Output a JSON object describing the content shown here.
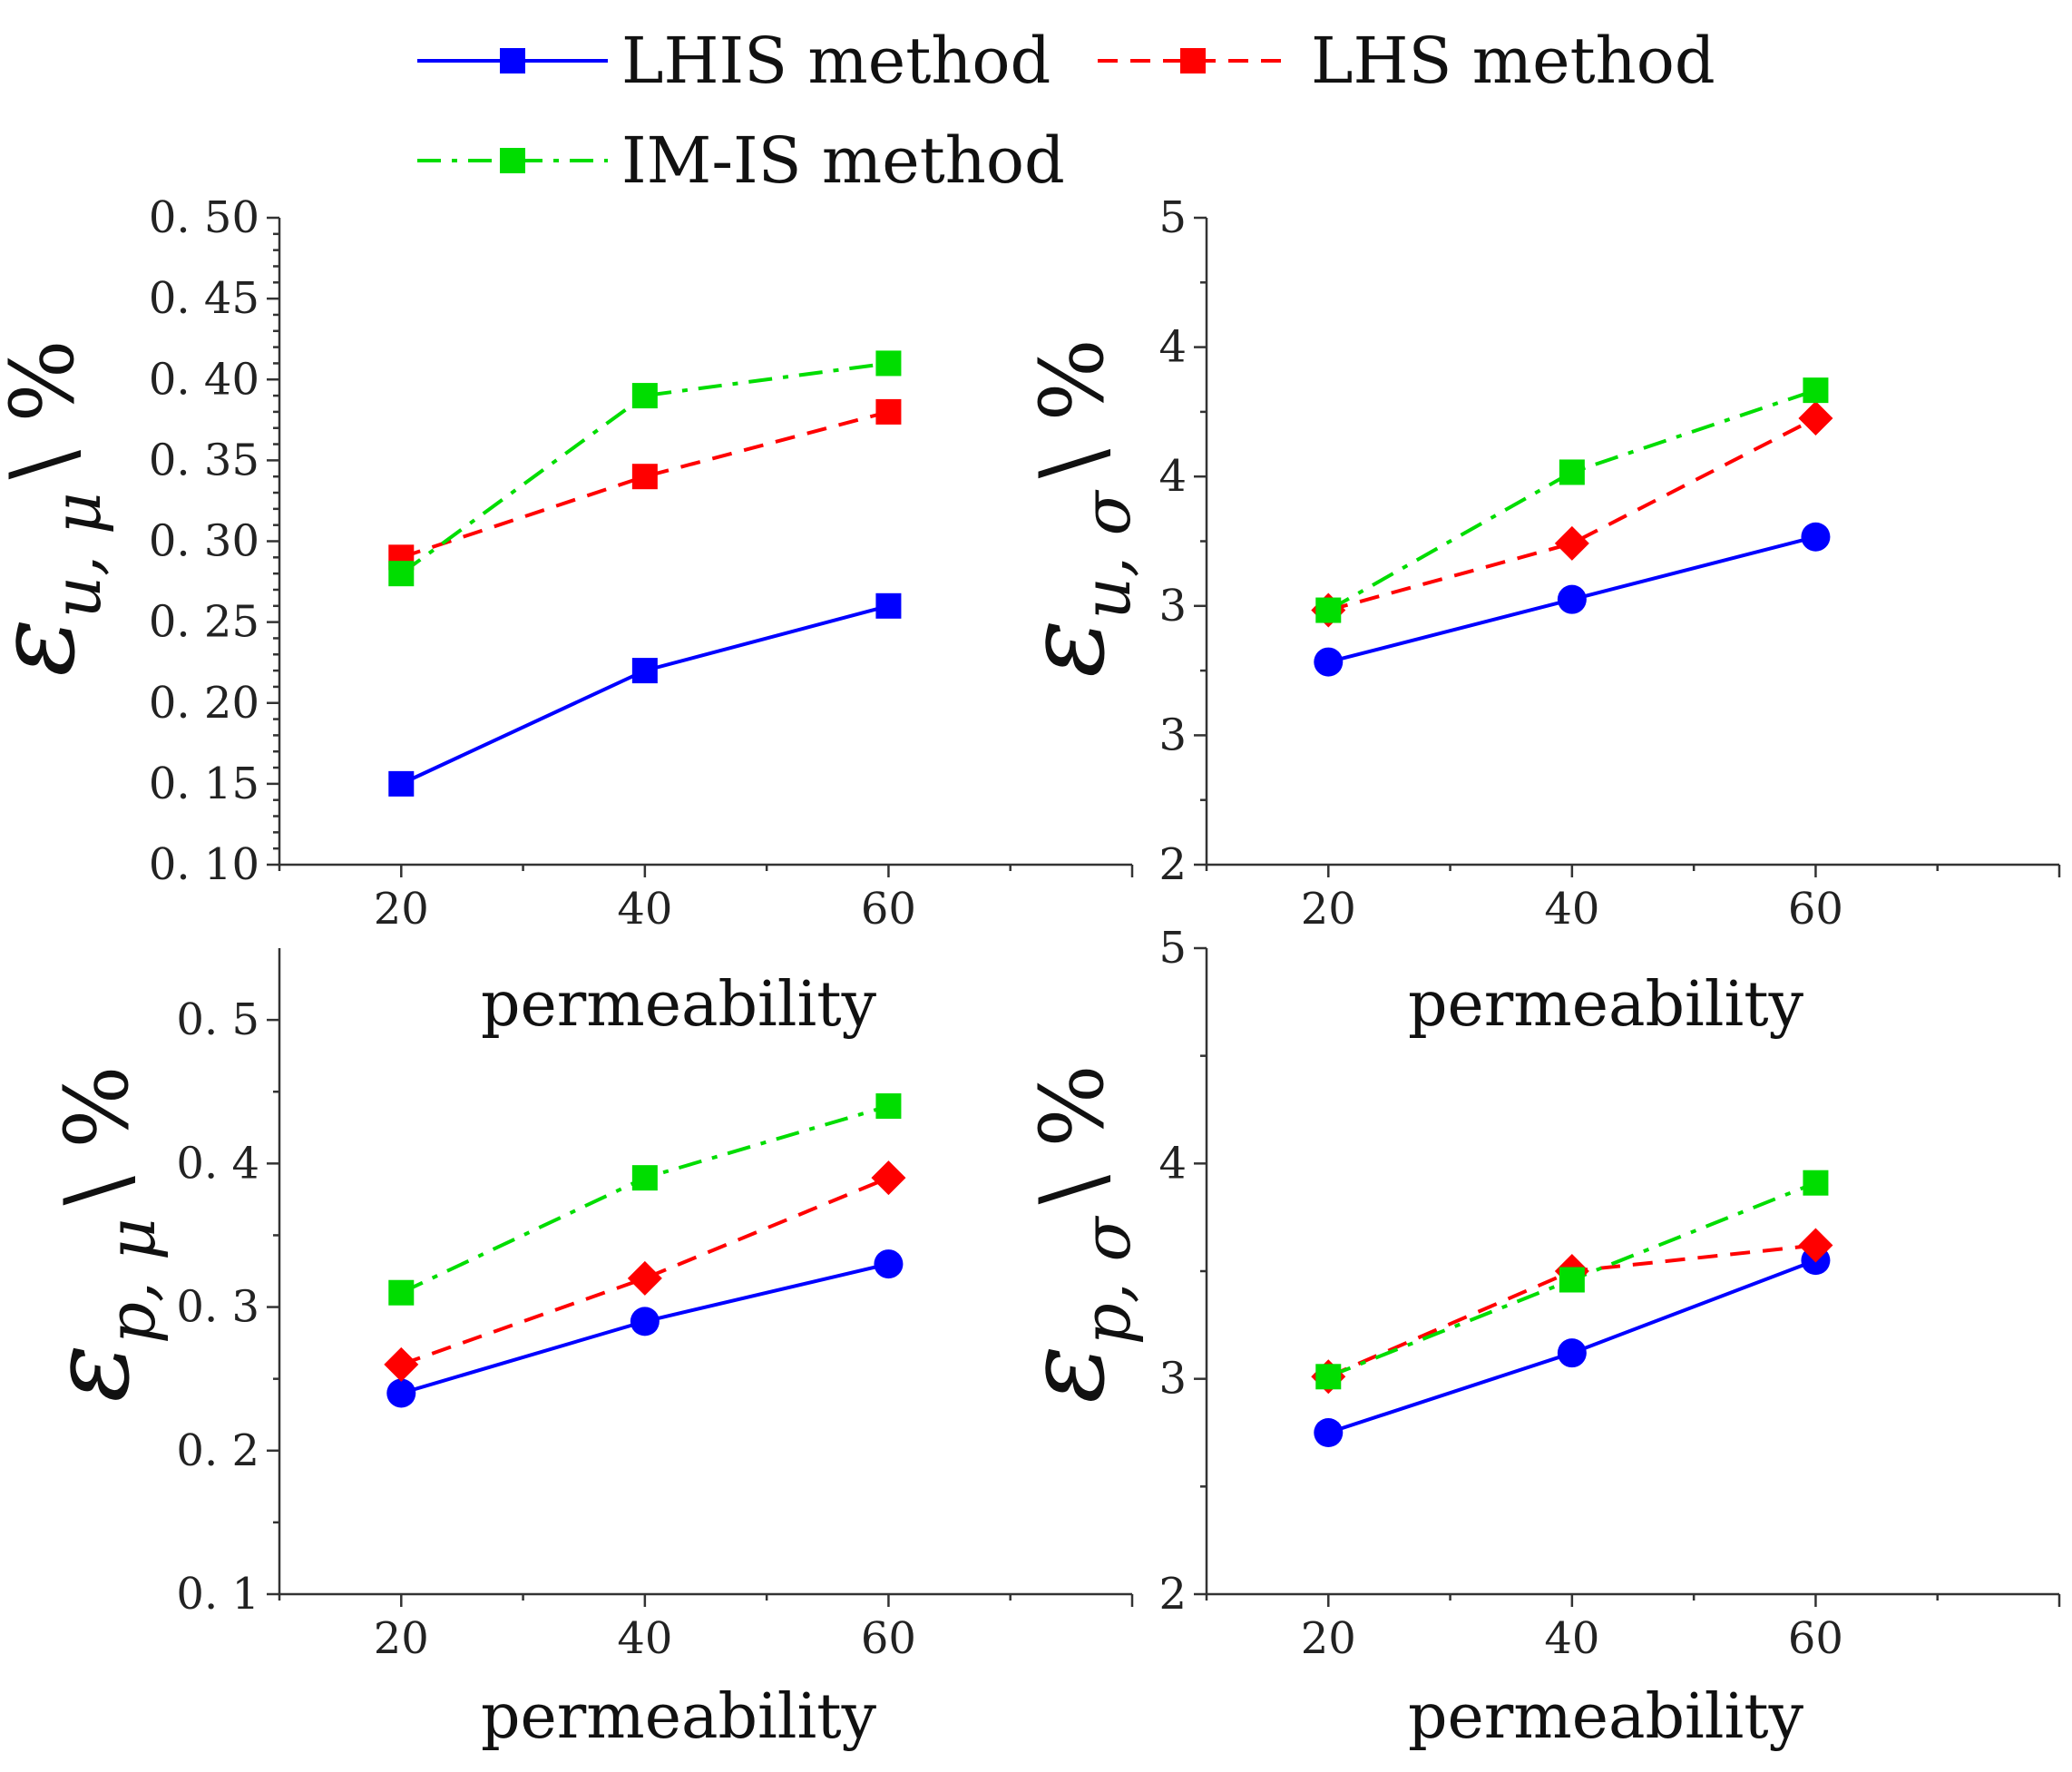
{
  "legend": [
    {
      "name": "LHIS method",
      "color": "#0000ff",
      "dash": "solid",
      "marker": "square"
    },
    {
      "name": "LHS method",
      "color": "#ff0000",
      "dash": "dash",
      "marker": "square"
    },
    {
      "name": "IM-IS method",
      "color": "#00dd00",
      "dash": "dashdot",
      "marker": "square"
    }
  ],
  "chart_data": [
    {
      "type": "line",
      "id": "top-left",
      "ylabel_main": "ε",
      "ylabel_sub": "u, μ",
      "ylabel_unit": "\\ %",
      "xlabel": "permeability",
      "x": [
        20,
        40,
        60
      ],
      "xticks": [
        "20",
        "40",
        "60"
      ],
      "xlim": [
        10,
        80
      ],
      "ylim": [
        0.1,
        0.5
      ],
      "yticks": [
        0.1,
        0.15,
        0.2,
        0.25,
        0.3,
        0.35,
        0.4,
        0.45,
        0.5
      ],
      "ytick_labels": [
        "0. 10",
        "0. 15",
        "0. 20",
        "0. 25",
        "0. 30",
        "0. 35",
        "0. 40",
        "0. 45",
        "0. 50"
      ],
      "series": [
        {
          "name": "LHIS method",
          "color": "#0000ff",
          "dash": "solid",
          "marker": "square",
          "values": [
            0.15,
            0.22,
            0.26
          ]
        },
        {
          "name": "LHS method",
          "color": "#ff0000",
          "dash": "dash",
          "marker": "square",
          "values": [
            0.29,
            0.34,
            0.38
          ]
        },
        {
          "name": "IM-IS method",
          "color": "#00dd00",
          "dash": "dashdot",
          "marker": "square",
          "values": [
            0.28,
            0.39,
            0.41
          ]
        }
      ]
    },
    {
      "type": "line",
      "id": "top-right",
      "ylabel_main": "ε",
      "ylabel_sub": "u, σ",
      "ylabel_unit": "\\ %",
      "xlabel": "permeability",
      "x": [
        20,
        40,
        60
      ],
      "xticks": [
        "20",
        "40",
        "60"
      ],
      "xlim": [
        10,
        80
      ],
      "ylim": [
        2,
        5
      ],
      "yticks": [
        2,
        2.6,
        3.2,
        3.8,
        4.4,
        5
      ],
      "ytick_labels": [
        "2",
        "3",
        "3",
        "4",
        "4",
        "5"
      ],
      "series": [
        {
          "name": "LHIS method",
          "color": "#0000ff",
          "dash": "solid",
          "marker": "circle",
          "values": [
            2.94,
            3.23,
            3.52
          ]
        },
        {
          "name": "LHS method",
          "color": "#ff0000",
          "dash": "dash",
          "marker": "diamond",
          "values": [
            3.18,
            3.49,
            4.07
          ]
        },
        {
          "name": "IM-IS method",
          "color": "#00dd00",
          "dash": "dashdot",
          "marker": "square",
          "values": [
            3.18,
            3.82,
            4.2
          ]
        }
      ]
    },
    {
      "type": "line",
      "id": "bottom-left",
      "ylabel_main": "ε",
      "ylabel_sub": "p, μ",
      "ylabel_unit": "\\ %",
      "xlabel": "permeability",
      "x": [
        20,
        40,
        60
      ],
      "xticks": [
        "20",
        "40",
        "60"
      ],
      "xlim": [
        10,
        80
      ],
      "ylim": [
        0.1,
        0.55
      ],
      "yticks": [
        0.1,
        0.2,
        0.3,
        0.4,
        0.5
      ],
      "ytick_labels": [
        "0. 1",
        "0. 2",
        "0. 3",
        "0. 4",
        "0. 5"
      ],
      "series": [
        {
          "name": "LHIS method",
          "color": "#0000ff",
          "dash": "solid",
          "marker": "circle",
          "values": [
            0.24,
            0.29,
            0.33
          ]
        },
        {
          "name": "LHS method",
          "color": "#ff0000",
          "dash": "dash",
          "marker": "diamond",
          "values": [
            0.26,
            0.32,
            0.39
          ]
        },
        {
          "name": "IM-IS method",
          "color": "#00dd00",
          "dash": "dashdot",
          "marker": "square",
          "values": [
            0.31,
            0.39,
            0.44
          ]
        }
      ]
    },
    {
      "type": "line",
      "id": "bottom-right",
      "ylabel_main": "ε",
      "ylabel_sub": "p, σ",
      "ylabel_unit": "\\ %",
      "xlabel": "permeability",
      "x": [
        20,
        40,
        60
      ],
      "xticks": [
        "20",
        "40",
        "60"
      ],
      "xlim": [
        10,
        80
      ],
      "ylim": [
        2,
        5
      ],
      "yticks": [
        2,
        3,
        4,
        5
      ],
      "ytick_labels": [
        "2",
        "3",
        "4",
        "5"
      ],
      "series": [
        {
          "name": "LHIS method",
          "color": "#0000ff",
          "dash": "solid",
          "marker": "circle",
          "values": [
            2.75,
            3.12,
            3.55
          ]
        },
        {
          "name": "LHS method",
          "color": "#ff0000",
          "dash": "dash",
          "marker": "diamond",
          "values": [
            3.01,
            3.5,
            3.62
          ]
        },
        {
          "name": "IM-IS method",
          "color": "#00dd00",
          "dash": "dashdot",
          "marker": "square",
          "values": [
            3.01,
            3.46,
            3.91
          ]
        }
      ]
    }
  ]
}
